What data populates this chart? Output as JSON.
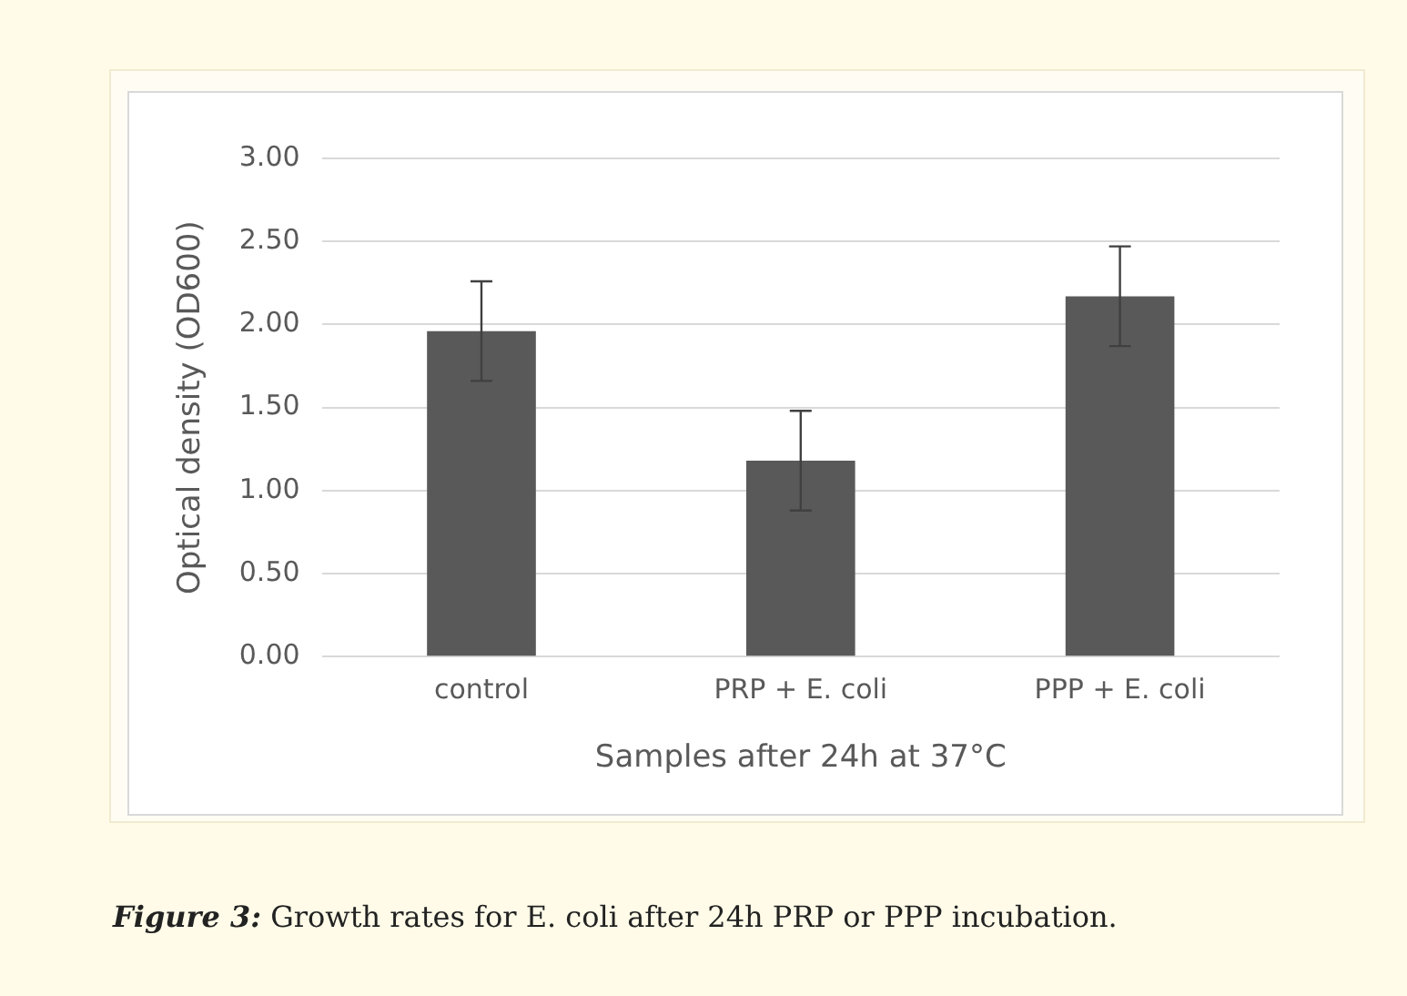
{
  "chart_data": {
    "type": "bar",
    "ylabel": "Optical density (OD600)",
    "xlabel": "Samples after 24h at 37°C",
    "categories": [
      "control",
      "PRP + E. coli",
      "PPP + E. coli"
    ],
    "values": [
      1.96,
      1.18,
      2.17
    ],
    "errors": [
      0.3,
      0.3,
      0.3
    ],
    "color": "#595959",
    "ylim": [
      0,
      3
    ],
    "yticks": [
      {
        "value": 0,
        "label": "0.00"
      },
      {
        "value": 0.5,
        "label": "0.50"
      },
      {
        "value": 1,
        "label": "1.00"
      },
      {
        "value": 1.5,
        "label": "1.50"
      },
      {
        "value": 2,
        "label": "2.00"
      },
      {
        "value": 2.5,
        "label": "2.50"
      },
      {
        "value": 3,
        "label": "3.00"
      }
    ],
    "grid": "y",
    "legend": false,
    "annotations": [
      "Figure 3: Growth rates for E. coli after 24h PRP or PPP incubation."
    ]
  }
}
